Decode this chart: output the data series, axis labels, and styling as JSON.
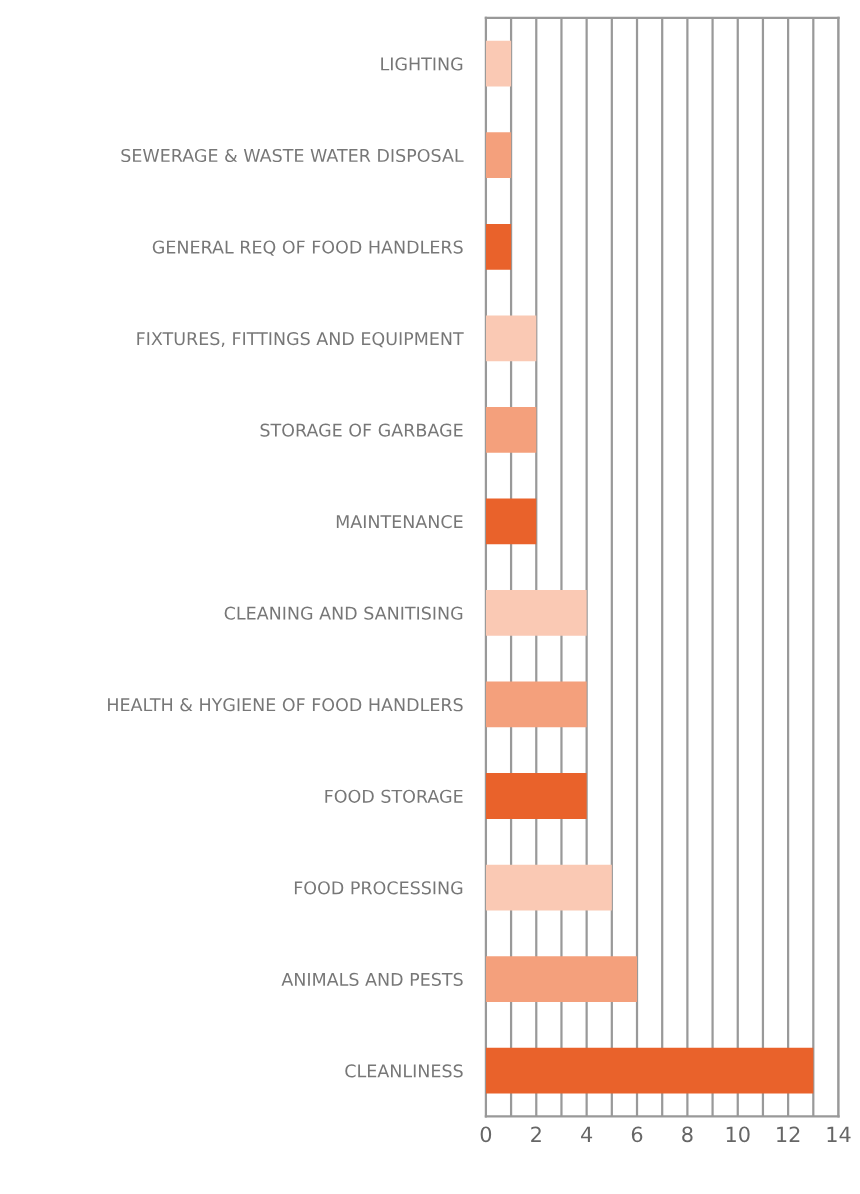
{
  "chart_data": {
    "type": "bar",
    "orientation": "horizontal",
    "categories": [
      "LIGHTING",
      "SEWERAGE & WASTE WATER DISPOSAL",
      "GENERAL REQ OF FOOD HANDLERS",
      "FIXTURES, FITTINGS AND EQUIPMENT",
      "STORAGE OF GARBAGE",
      "MAINTENANCE",
      "CLEANING AND SANITISING",
      "HEALTH & HYGIENE OF FOOD HANDLERS",
      "FOOD STORAGE",
      "FOOD PROCESSING",
      "ANIMALS AND PESTS",
      "CLEANLINESS"
    ],
    "values": [
      1,
      1,
      1,
      2,
      2,
      2,
      4,
      4,
      4,
      5,
      6,
      13
    ],
    "colors": [
      "#fac9b4",
      "#f4a07c",
      "#e9622b",
      "#fac9b4",
      "#f4a07c",
      "#e9622b",
      "#fac9b4",
      "#f4a07c",
      "#e9622b",
      "#fac9b4",
      "#f4a07c",
      "#e9622b"
    ],
    "xlim": [
      0,
      14
    ],
    "xticks": [
      0,
      {
        "value": 1,
        "label": null
      },
      2,
      {
        "value": 3,
        "label": null
      },
      4,
      {
        "value": 5,
        "label": null
      },
      6,
      {
        "value": 7,
        "label": null
      },
      8,
      {
        "value": 9,
        "label": null
      },
      10,
      {
        "value": 11,
        "label": null
      },
      12,
      {
        "value": 13,
        "label": null
      },
      14
    ],
    "grid": "x"
  }
}
